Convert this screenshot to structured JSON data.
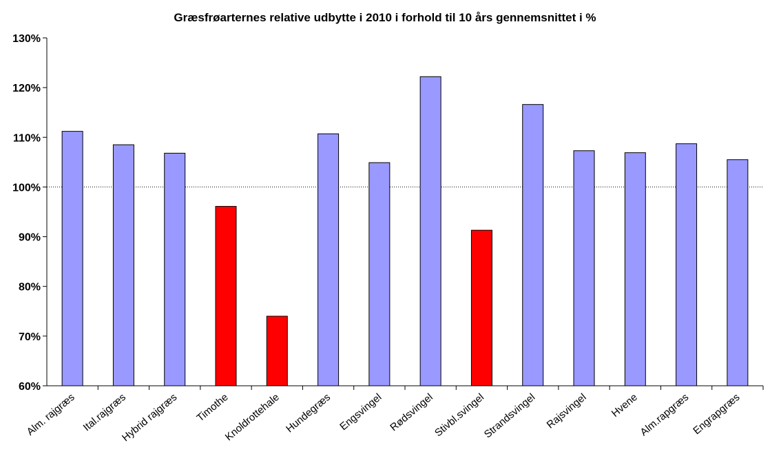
{
  "chart_data": {
    "type": "bar",
    "title": "Græsfrøarternes relative udbytte i 2010 i forhold til 10 års gennemsnittet i %",
    "xlabel": "",
    "ylabel": "",
    "ylim": [
      60,
      130
    ],
    "yticks": [
      60,
      70,
      80,
      90,
      100,
      110,
      120,
      130
    ],
    "ytick_labels": [
      "60%",
      "70%",
      "80%",
      "90%",
      "100%",
      "110%",
      "120%",
      "130%"
    ],
    "reference_line": 100,
    "grid": false,
    "legend": "none",
    "categories": [
      "Alm. rajgræs",
      "Ital.rajgræs",
      "Hybrid rajgræs",
      "Timothe",
      "Knoldrottehale",
      "Hundegræs",
      "Engsvingel",
      "Rødsvingel",
      "Stivbl.svingel",
      "Strandsvingel",
      "Rajsvingel",
      "Hvene",
      "Alm.rapgræs",
      "Engrapgræs"
    ],
    "values": [
      111.2,
      108.5,
      106.8,
      96.1,
      74.0,
      110.7,
      104.9,
      122.2,
      91.3,
      116.6,
      107.3,
      106.9,
      108.7,
      105.5
    ],
    "colors": {
      "above": "#9999ff",
      "below": "#ff0000",
      "edge": "#000000"
    }
  }
}
